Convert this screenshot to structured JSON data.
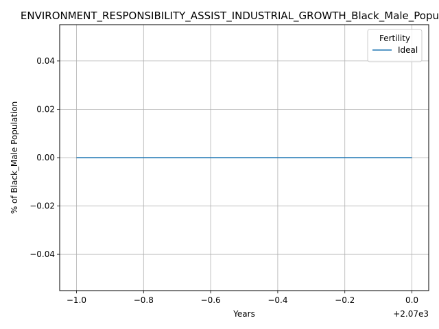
{
  "chart_data": {
    "type": "line",
    "title": "ENVIRONMENT_RESPONSIBILITY_ASSIST_INDUSTRIAL_GROWTH_Black_Male_Population",
    "xlabel": "Years",
    "ylabel": "% of Black_Male Population",
    "x_offset_label": "+2.07e3",
    "x_ticks": [
      -1.0,
      -0.8,
      -0.6,
      -0.4,
      -0.2,
      0.0
    ],
    "x_tick_labels": [
      "−1.0",
      "−0.8",
      "−0.6",
      "−0.4",
      "−0.2",
      "0.0"
    ],
    "y_ticks": [
      -0.04,
      -0.02,
      0.0,
      0.02,
      0.04
    ],
    "y_tick_labels": [
      "−0.04",
      "−0.02",
      "0.00",
      "0.02",
      "0.04"
    ],
    "xlim": [
      -1.05,
      0.05
    ],
    "ylim": [
      -0.055,
      0.055
    ],
    "grid": true,
    "legend": {
      "title": "Fertility",
      "placement": "top-right"
    },
    "series": [
      {
        "name": "Ideal",
        "color": "#1f77b4",
        "x": [
          -1.0,
          0.0
        ],
        "y": [
          0.0,
          0.0
        ]
      }
    ]
  }
}
